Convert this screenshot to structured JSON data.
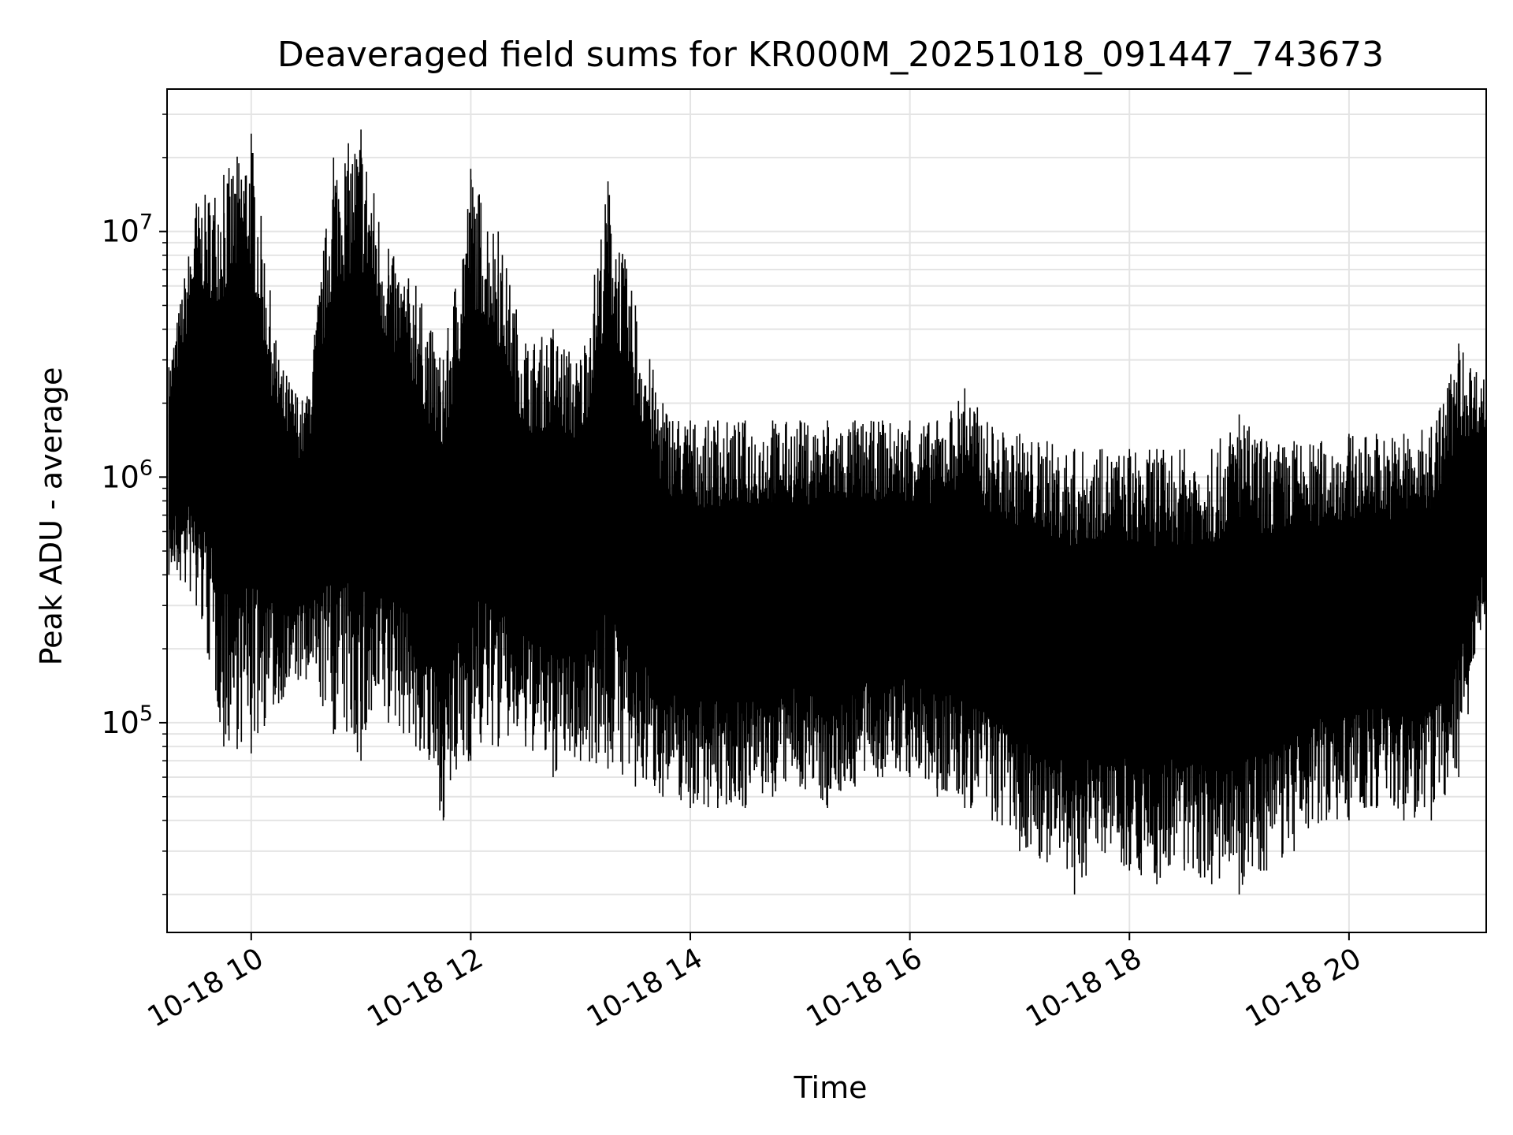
{
  "chart_data": {
    "type": "line",
    "title": "Deaveraged field sums for KR000M_20251018_091447_743673",
    "xlabel": "Time",
    "ylabel": "Peak ADU - average",
    "yscale": "log",
    "grid": true,
    "legend": "none",
    "xlim": [
      "2025-10-18 09:14",
      "2025-10-18 21:15"
    ],
    "ylim": [
      14000,
      38000000
    ],
    "x_ticks": [
      {
        "value": "2025-10-18 10:00",
        "label": "10-18 10"
      },
      {
        "value": "2025-10-18 12:00",
        "label": "10-18 12"
      },
      {
        "value": "2025-10-18 14:00",
        "label": "10-18 14"
      },
      {
        "value": "2025-10-18 16:00",
        "label": "10-18 16"
      },
      {
        "value": "2025-10-18 18:00",
        "label": "10-18 18"
      },
      {
        "value": "2025-10-18 20:00",
        "label": "10-18 20"
      }
    ],
    "y_ticks": [
      {
        "value": 100000,
        "base": "10",
        "exp": "5"
      },
      {
        "value": 1000000,
        "base": "10",
        "exp": "6"
      },
      {
        "value": 10000000,
        "base": "10",
        "exp": "7"
      }
    ],
    "series": [
      {
        "color": "#000000",
        "x": [
          "2025-10-18 09:15",
          "2025-10-18 09:30",
          "2025-10-18 09:45",
          "2025-10-18 10:00",
          "2025-10-18 10:15",
          "2025-10-18 10:30",
          "2025-10-18 10:45",
          "2025-10-18 11:00",
          "2025-10-18 11:15",
          "2025-10-18 11:30",
          "2025-10-18 11:45",
          "2025-10-18 12:00",
          "2025-10-18 12:15",
          "2025-10-18 12:30",
          "2025-10-18 12:45",
          "2025-10-18 13:00",
          "2025-10-18 13:15",
          "2025-10-18 13:30",
          "2025-10-18 13:45",
          "2025-10-18 14:00",
          "2025-10-18 14:15",
          "2025-10-18 14:30",
          "2025-10-18 14:45",
          "2025-10-18 15:00",
          "2025-10-18 15:15",
          "2025-10-18 15:30",
          "2025-10-18 15:45",
          "2025-10-18 16:00",
          "2025-10-18 16:15",
          "2025-10-18 16:30",
          "2025-10-18 16:45",
          "2025-10-18 17:00",
          "2025-10-18 17:15",
          "2025-10-18 17:30",
          "2025-10-18 17:45",
          "2025-10-18 18:00",
          "2025-10-18 18:15",
          "2025-10-18 18:30",
          "2025-10-18 18:45",
          "2025-10-18 19:00",
          "2025-10-18 19:15",
          "2025-10-18 19:30",
          "2025-10-18 19:45",
          "2025-10-18 20:00",
          "2025-10-18 20:15",
          "2025-10-18 20:30",
          "2025-10-18 20:45",
          "2025-10-18 21:00",
          "2025-10-18 21:15"
        ],
        "high": [
          2800000,
          13000000,
          17000000,
          25000000,
          3000000,
          2000000,
          20000000,
          26000000,
          8500000,
          6000000,
          3000000,
          18000000,
          10000000,
          3500000,
          4000000,
          3000000,
          16000000,
          5000000,
          2000000,
          1700000,
          1700000,
          1700000,
          1700000,
          1700000,
          1700000,
          1700000,
          1700000,
          1700000,
          1700000,
          2300000,
          1600000,
          1500000,
          1400000,
          1300000,
          1300000,
          1300000,
          1300000,
          1300000,
          1300000,
          1800000,
          1400000,
          1400000,
          1400000,
          1500000,
          1500000,
          1500000,
          1600000,
          3500000,
          2500000
        ],
        "low": [
          400000,
          300000,
          80000,
          75000,
          120000,
          150000,
          90000,
          70000,
          100000,
          80000,
          40000,
          70000,
          80000,
          80000,
          60000,
          70000,
          65000,
          55000,
          50000,
          45000,
          45000,
          45000,
          50000,
          55000,
          45000,
          55000,
          60000,
          60000,
          50000,
          45000,
          40000,
          30000,
          27000,
          20000,
          30000,
          25000,
          22000,
          25000,
          22000,
          20000,
          25000,
          30000,
          40000,
          40000,
          45000,
          40000,
          40000,
          60000,
          300000
        ]
      }
    ]
  }
}
